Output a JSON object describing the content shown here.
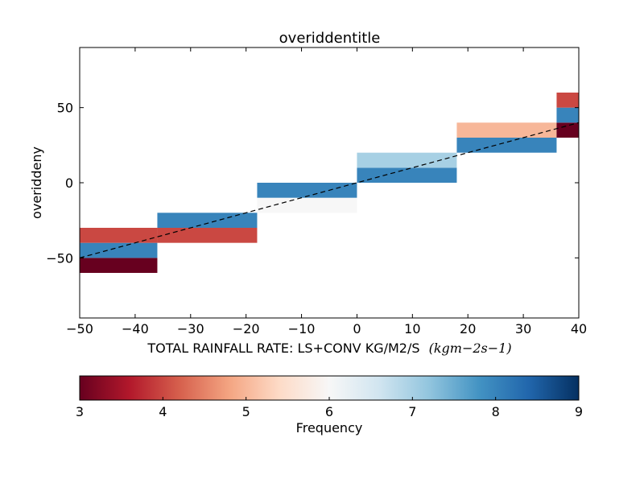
{
  "chart_data": {
    "type": "heatmap",
    "title": "overiddentitle",
    "xlabel": "TOTAL RAINFALL RATE: LS+CONV KG/M2/S",
    "xlabel_unit": "(kgm−2s−1)",
    "ylabel": "overiddeny",
    "xlim": [
      -50,
      40
    ],
    "ylim": [
      -90,
      90
    ],
    "x_ticks": [
      -50,
      -40,
      -30,
      -20,
      -10,
      0,
      10,
      20,
      30,
      40
    ],
    "y_ticks": [
      50,
      0,
      -50
    ],
    "grid": false,
    "cells": [
      {
        "x0": -50,
        "x1": -36,
        "y0": -60,
        "y1": -50,
        "value": 3
      },
      {
        "x0": -50,
        "x1": -36,
        "y0": -50,
        "y1": -40,
        "value": 8
      },
      {
        "x0": -50,
        "x1": -36,
        "y0": -40,
        "y1": -30,
        "value": 4
      },
      {
        "x0": -36,
        "x1": -18,
        "y0": -40,
        "y1": -30,
        "value": 4
      },
      {
        "x0": -36,
        "x1": -18,
        "y0": -30,
        "y1": -20,
        "value": 8
      },
      {
        "x0": -18,
        "x1": 0,
        "y0": -20,
        "y1": -10,
        "value": 6
      },
      {
        "x0": -18,
        "x1": 0,
        "y0": -10,
        "y1": 0,
        "value": 8
      },
      {
        "x0": 0,
        "x1": 18,
        "y0": 0,
        "y1": 10,
        "value": 8
      },
      {
        "x0": 0,
        "x1": 18,
        "y0": 10,
        "y1": 20,
        "value": 7
      },
      {
        "x0": 18,
        "x1": 36,
        "y0": 20,
        "y1": 30,
        "value": 8
      },
      {
        "x0": 18,
        "x1": 36,
        "y0": 30,
        "y1": 40,
        "value": 5
      },
      {
        "x0": 36,
        "x1": 40,
        "y0": 30,
        "y1": 40,
        "value": 3
      },
      {
        "x0": 36,
        "x1": 40,
        "y0": 40,
        "y1": 50,
        "value": 8
      },
      {
        "x0": 36,
        "x1": 40,
        "y0": 50,
        "y1": 60,
        "value": 4
      }
    ],
    "reference_line": {
      "style": "dashed",
      "color": "#000000",
      "points": [
        [
          -50,
          -50
        ],
        [
          40,
          40
        ]
      ]
    },
    "colorbar": {
      "label": "Frequency",
      "min": 3,
      "max": 9,
      "ticks": [
        3,
        4,
        5,
        6,
        7,
        8,
        9
      ],
      "orientation": "horizontal",
      "colormap": [
        "#67001f",
        "#b2182b",
        "#d6604d",
        "#f4a582",
        "#fddbc7",
        "#f7f7f7",
        "#d1e5f0",
        "#92c5de",
        "#4393c3",
        "#2166ac",
        "#053061"
      ]
    }
  }
}
